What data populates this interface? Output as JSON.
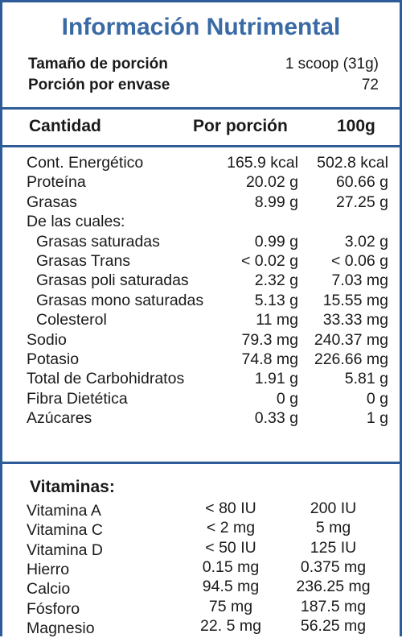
{
  "title": "Información Nutrimental",
  "serving": {
    "size_label": "Tamaño de porción",
    "size_value": "1 scoop (31g)",
    "per_container_label": "Porción por envase",
    "per_container_value": "72"
  },
  "header": {
    "amount": "Cantidad",
    "per_serving": "Por porción",
    "per_100g": "100g"
  },
  "nutrients": [
    {
      "name": "Cont. Energético",
      "per_serving": "165.9 kcal",
      "per_100g": "502.8 kcal"
    },
    {
      "name": "Proteína",
      "per_serving": "20.02 g",
      "per_100g": "60.66 g"
    },
    {
      "name": "Grasas",
      "per_serving": "8.99 g",
      "per_100g": "27.25 g"
    },
    {
      "name": "De las cuales:",
      "per_serving": "",
      "per_100g": ""
    },
    {
      "name": "Grasas saturadas",
      "per_serving": "0.99 g",
      "per_100g": "3.02 g"
    },
    {
      "name": "Grasas Trans",
      "per_serving": "< 0.02 g",
      "per_100g": "< 0.06 g"
    },
    {
      "name": "Grasas poli saturadas",
      "per_serving": "2.32 g",
      "per_100g": "7.03 mg"
    },
    {
      "name": "Grasas mono saturadas",
      "per_serving": "5.13 g",
      "per_100g": "15.55 mg"
    },
    {
      "name": "Colesterol",
      "per_serving": "11 mg",
      "per_100g": "33.33 mg"
    },
    {
      "name": "Sodio",
      "per_serving": "79.3 mg",
      "per_100g": "240.37 mg"
    },
    {
      "name": "Potasio",
      "per_serving": "74.8 mg",
      "per_100g": "226.66 mg"
    },
    {
      "name": "Total de Carbohidratos",
      "per_serving": "1.91 g",
      "per_100g": "5.81 g"
    },
    {
      "name": "Fibra Dietética",
      "per_serving": "0 g",
      "per_100g": "0 g"
    },
    {
      "name": "Azúcares",
      "per_serving": "0.33 g",
      "per_100g": "1 g"
    }
  ],
  "vitamins": {
    "title": "Vitaminas:",
    "rows": [
      {
        "name": "Vitamina A",
        "per_serving": "< 80 IU",
        "per_100g": "200 IU"
      },
      {
        "name": "Vitamina C",
        "per_serving": "< 2 mg",
        "per_100g": "5 mg"
      },
      {
        "name": "Vitamina D",
        "per_serving": "< 50 IU",
        "per_100g": "125 IU"
      },
      {
        "name": "Hierro",
        "per_serving": "0.15 mg",
        "per_100g": "0.375 mg"
      },
      {
        "name": "Calcio",
        "per_serving": "94.5 mg",
        "per_100g": "236.25 mg"
      },
      {
        "name": "Fósforo",
        "per_serving": "75 mg",
        "per_100g": "187.5 mg"
      },
      {
        "name": "Magnesio",
        "per_serving": "22. 5 mg",
        "per_100g": "56.25 mg"
      }
    ]
  },
  "colors": {
    "title": "#3a6aa5",
    "border": "#2d5c98"
  }
}
